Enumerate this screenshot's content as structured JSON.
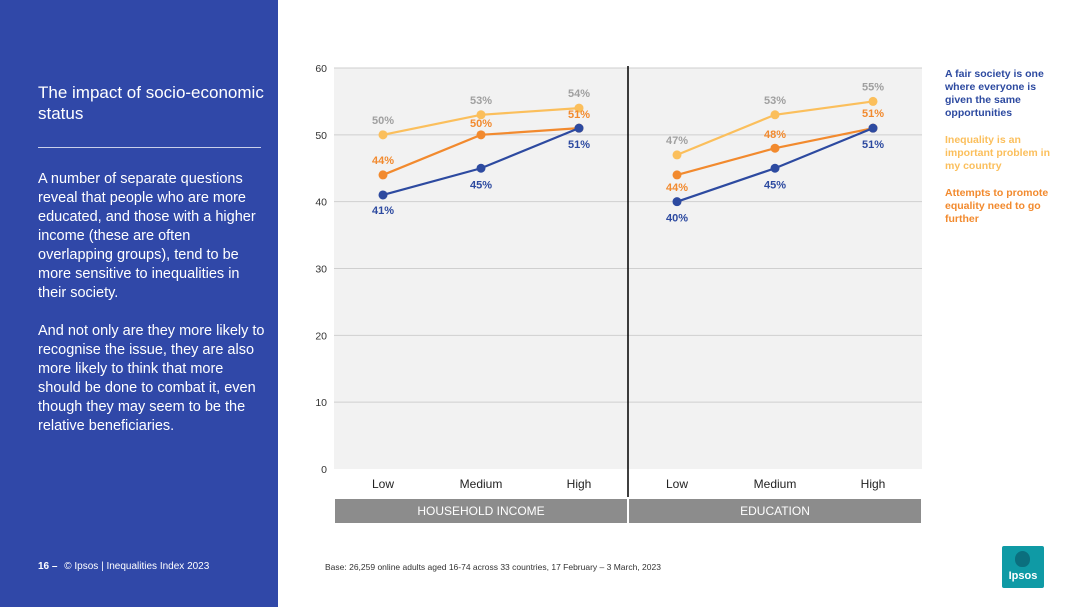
{
  "sidebar": {
    "title": "The impact of socio-economic status",
    "paragraphs": [
      "A number of separate questions reveal that people who are more educated, and those with a higher income (these are often overlapping groups), tend to be more sensitive to inequalities in their society.",
      "And not only are they more likely to recognise the issue, they are also more likely to think that more should be done to combat it, even though they may seem to be the relative beneficiaries."
    ]
  },
  "footer": {
    "page_number": "16 –",
    "source": "© Ipsos | Inequalities Index 2023"
  },
  "base_note": "Base: 26,259 online adults aged 16-74 across 33 countries, 17 February – 3 March, 2023",
  "logo_text": "Ipsos",
  "colors": {
    "sidebar_bg": "#3048a8",
    "fair_society": "#fbbf5c",
    "inequality_problem": "#f28a2e",
    "promote_equality": "#2d4aa0",
    "panel_bg": "#f2f2f2",
    "group_bar": "#8c8c8c"
  },
  "chart_data": {
    "type": "line",
    "ylim": [
      0,
      60
    ],
    "yticks": [
      0,
      10,
      20,
      30,
      40,
      50,
      60
    ],
    "grid": true,
    "legend_position": "right",
    "categories": [
      "Low",
      "Medium",
      "High"
    ],
    "panels": [
      {
        "group_label": "HOUSEHOLD INCOME",
        "series": [
          {
            "name": "A fair society is one where everyone is given the same opportunities",
            "values": [
              50,
              53,
              54
            ],
            "labels": [
              "50%",
              "53%",
              "54%"
            ]
          },
          {
            "name": "Inequality is an important problem in my country",
            "values": [
              44,
              50,
              51
            ],
            "labels": [
              "44%",
              "50%",
              "51%"
            ]
          },
          {
            "name": "Attempts to promote equality need to go further",
            "values": [
              41,
              45,
              51
            ],
            "labels": [
              "41%",
              "45%",
              "51%"
            ]
          }
        ]
      },
      {
        "group_label": "EDUCATION",
        "series": [
          {
            "name": "A fair society is one where everyone is given the same opportunities",
            "values": [
              47,
              53,
              55
            ],
            "labels": [
              "47%",
              "53%",
              "55%"
            ]
          },
          {
            "name": "Inequality is an important problem in my country",
            "values": [
              44,
              48,
              51
            ],
            "labels": [
              "44%",
              "48%",
              "51%"
            ]
          },
          {
            "name": "Attempts to promote equality need to go further",
            "values": [
              40,
              45,
              51
            ],
            "labels": [
              "40%",
              "45%",
              "51%"
            ]
          }
        ]
      }
    ],
    "legend": [
      {
        "label": "A fair society is one where everyone is given the same opportunities",
        "color": "#2d4aa0"
      },
      {
        "label": "Inequality is an important problem in my country",
        "color": "#fbbf5c"
      },
      {
        "label": "Attempts to promote equality need to go further",
        "color": "#f28a2e"
      }
    ]
  }
}
